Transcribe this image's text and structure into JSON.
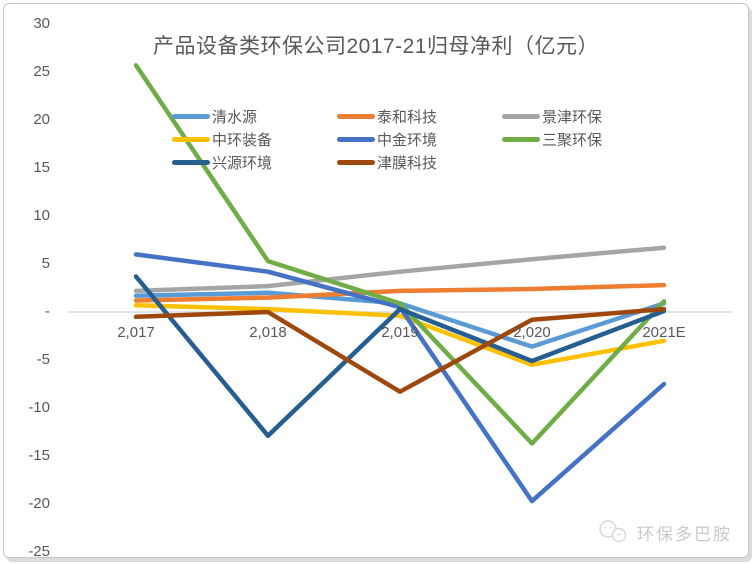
{
  "page": {
    "watermark": "环保多巴胺"
  },
  "chart_data": {
    "type": "line",
    "title": "产品设备类环保公司2017-21归母净利（亿元）",
    "unit": "亿元",
    "categories": [
      "2,017",
      "2,018",
      "2,019",
      "2,020",
      "2021E"
    ],
    "y_ticks": [
      {
        "label": "30",
        "value": 30
      },
      {
        "label": "25",
        "value": 25
      },
      {
        "label": "20",
        "value": 20
      },
      {
        "label": "15",
        "value": 15
      },
      {
        "label": "10",
        "value": 10
      },
      {
        "label": "5",
        "value": 5
      },
      {
        "label": "-",
        "value": 0
      },
      {
        "label": "-5",
        "value": -5
      },
      {
        "label": "-10",
        "value": -10
      },
      {
        "label": "-15",
        "value": -15
      },
      {
        "label": "-20",
        "value": -20
      },
      {
        "label": "-25",
        "value": -25
      }
    ],
    "ylim": [
      -25,
      30
    ],
    "grid": "zero-line-only",
    "zero_line_color": "#d9d9d9",
    "legend_position": "inside-top-3-columns",
    "text_color": "#595959",
    "series": [
      {
        "name": "清水源",
        "color": "#5B9BD5",
        "values": [
          1.7,
          2.0,
          0.9,
          -3.6,
          0.9
        ]
      },
      {
        "name": "泰和科技",
        "color": "#ED7D31",
        "values": [
          1.2,
          1.5,
          2.2,
          2.4,
          2.8
        ]
      },
      {
        "name": "景津环保",
        "color": "#A5A5A5",
        "values": [
          2.2,
          2.7,
          4.2,
          5.5,
          6.7
        ]
      },
      {
        "name": "中环装备",
        "color": "#FFC000",
        "values": [
          0.7,
          0.3,
          -0.4,
          -5.5,
          -3.0
        ]
      },
      {
        "name": "中金环境",
        "color": "#4472C4",
        "values": [
          6.0,
          4.2,
          0.5,
          -19.7,
          -7.5
        ]
      },
      {
        "name": "三聚环保",
        "color": "#70AD47",
        "values": [
          25.7,
          5.3,
          0.9,
          -13.7,
          1.1
        ]
      },
      {
        "name": "兴源环境",
        "color": "#255E91",
        "values": [
          3.7,
          -12.9,
          0.3,
          -5.1,
          0.1
        ]
      },
      {
        "name": "津膜科技",
        "color": "#9E480E",
        "values": [
          -0.5,
          0.0,
          -8.3,
          -0.8,
          0.3
        ]
      }
    ]
  }
}
